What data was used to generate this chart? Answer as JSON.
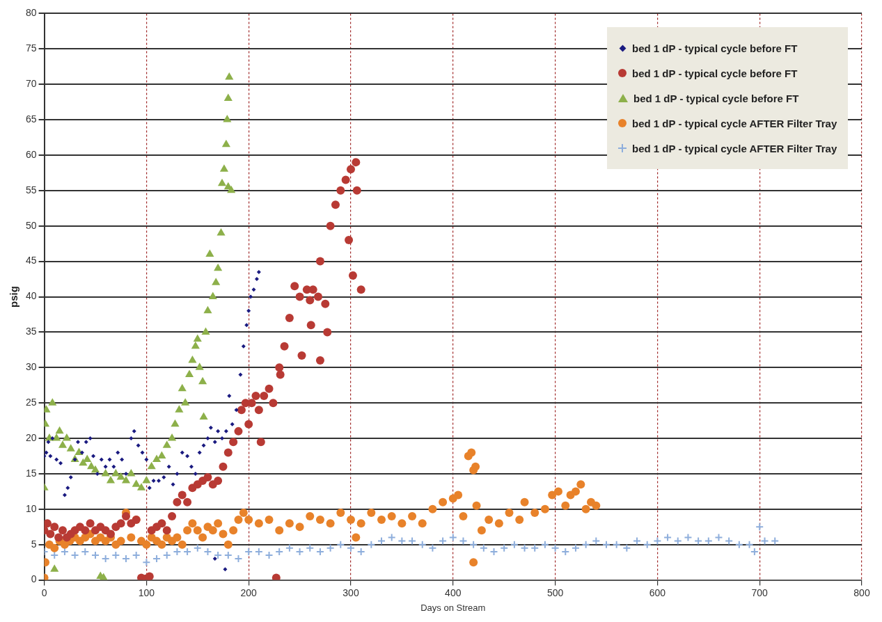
{
  "chart_data": {
    "type": "scatter",
    "xlabel": "Days on Stream",
    "ylabel": "psig",
    "xlim": [
      0,
      800
    ],
    "xticks": [
      0,
      100,
      200,
      300,
      400,
      500,
      600,
      700,
      800
    ],
    "ylim": [
      0,
      80
    ],
    "yticks": [
      0,
      5,
      10,
      15,
      20,
      25,
      30,
      35,
      40,
      45,
      50,
      55,
      60,
      65,
      70,
      75,
      80
    ],
    "grid": true,
    "legend": "top right",
    "series": [
      {
        "name": "bed 1 dP - typical cycle before FT",
        "color": "#1a1a80",
        "marker": "diamond",
        "x": [
          0,
          2,
          4,
          6,
          8,
          12,
          16,
          20,
          23,
          26,
          30,
          33,
          37,
          41,
          45,
          48,
          52,
          56,
          60,
          64,
          68,
          72,
          76,
          80,
          85,
          88,
          92,
          96,
          100,
          103,
          107,
          112,
          117,
          122,
          126,
          130,
          135,
          140,
          144,
          148,
          152,
          156,
          160,
          163,
          167,
          167,
          170,
          174,
          177,
          178,
          181,
          184,
          188,
          192,
          195,
          198,
          200,
          202,
          205,
          208,
          210
        ],
        "values": [
          17.5,
          18,
          19.5,
          17.5,
          20,
          17,
          16.5,
          12,
          13,
          14.5,
          17,
          19.5,
          18,
          19.5,
          20,
          17.5,
          15,
          17,
          16,
          17,
          16,
          18,
          17,
          15,
          20,
          21,
          19,
          18,
          17,
          13,
          14,
          14,
          14.5,
          16,
          13.5,
          15,
          18,
          17.5,
          16,
          15,
          18,
          19,
          20,
          21.5,
          19.5,
          3,
          21,
          20,
          1.5,
          21,
          26,
          22,
          24,
          29,
          33,
          36,
          38,
          40,
          41,
          42.5,
          43.5
        ]
      },
      {
        "name": "bed 1 dP - typical cycle before FT",
        "color": "#b83a34",
        "marker": "circle",
        "x": [
          0,
          3,
          6,
          10,
          14,
          18,
          22,
          26,
          30,
          35,
          40,
          45,
          50,
          55,
          60,
          65,
          70,
          75,
          80,
          85,
          90,
          95,
          100,
          103,
          105,
          110,
          115,
          120,
          125,
          130,
          135,
          140,
          145,
          150,
          155,
          160,
          165,
          170,
          175,
          180,
          185,
          190,
          193,
          197,
          200,
          203,
          207,
          210,
          212,
          215,
          220,
          224,
          227,
          230,
          231,
          235,
          240,
          245,
          250,
          252,
          257,
          260,
          261,
          263,
          268,
          270,
          270,
          275,
          277,
          280,
          285,
          290,
          295,
          298,
          300,
          302,
          305,
          306,
          310
        ],
        "values": [
          7,
          8,
          6.5,
          7.5,
          6,
          7,
          6,
          6.5,
          7,
          7.5,
          7,
          8,
          7,
          7.5,
          7,
          6.5,
          7.5,
          8,
          9,
          8,
          8.5,
          0.3,
          0.2,
          0.5,
          7,
          7.5,
          8,
          7,
          9,
          11,
          12,
          11,
          13,
          13.5,
          14,
          14.5,
          13.5,
          14,
          16,
          18,
          19.5,
          21,
          24,
          25,
          22,
          25,
          26,
          24,
          19.5,
          26,
          27,
          25,
          0.3,
          30,
          29,
          33,
          37,
          41.5,
          40,
          31.7,
          41,
          39.5,
          36,
          41,
          40,
          45,
          31,
          39,
          35,
          50,
          53,
          55,
          56.5,
          48,
          58,
          43,
          59,
          55,
          41
        ]
      },
      {
        "name": "bed 1 dP - typical cycle before FT",
        "color": "#8db04a",
        "marker": "triangle",
        "x": [
          0,
          1,
          2,
          5,
          8,
          10,
          12,
          15,
          18,
          22,
          26,
          30,
          34,
          38,
          42,
          46,
          50,
          55,
          58,
          60,
          65,
          70,
          75,
          80,
          85,
          90,
          95,
          100,
          105,
          110,
          115,
          120,
          125,
          128,
          132,
          135,
          138,
          142,
          145,
          148,
          150,
          152,
          155,
          156,
          158,
          160,
          162,
          165,
          168,
          170,
          173,
          174,
          176,
          178,
          179,
          180,
          180,
          181,
          183
        ],
        "values": [
          13,
          22,
          24,
          20,
          25,
          1.5,
          20,
          21,
          19,
          20,
          18.5,
          17,
          18,
          16.5,
          17,
          16,
          15.5,
          0.5,
          0.3,
          15,
          14,
          15,
          14.5,
          14,
          15,
          13.5,
          13,
          14,
          16,
          17,
          17.5,
          19,
          20,
          22,
          24,
          27,
          25,
          29,
          31,
          33,
          34,
          30,
          28,
          23,
          35,
          38,
          46,
          40,
          42,
          44,
          49,
          56,
          58,
          61.5,
          65,
          68,
          55.5,
          71,
          55
        ]
      },
      {
        "name": "bed 1 dP - typical cycle AFTER Filter Tray",
        "color": "#e8822a",
        "marker": "circle",
        "x": [
          0,
          1,
          5,
          10,
          15,
          20,
          25,
          30,
          35,
          40,
          45,
          50,
          55,
          60,
          65,
          70,
          75,
          80,
          85,
          90,
          95,
          100,
          105,
          110,
          115,
          120,
          125,
          130,
          135,
          140,
          145,
          150,
          155,
          160,
          165,
          170,
          175,
          180,
          185,
          190,
          195,
          200,
          210,
          220,
          230,
          240,
          250,
          260,
          270,
          280,
          290,
          300,
          305,
          310,
          320,
          330,
          340,
          350,
          360,
          370,
          380,
          390,
          400,
          405,
          410,
          415,
          418,
          420,
          422,
          420,
          423,
          428,
          435,
          445,
          455,
          465,
          470,
          480,
          490,
          497,
          503,
          510,
          515,
          520,
          525,
          530,
          535,
          540
        ],
        "values": [
          0.3,
          2.5,
          5,
          4.5,
          5.5,
          5,
          5.5,
          6,
          5.5,
          6,
          6.5,
          5.5,
          6,
          5.5,
          6,
          5,
          5.5,
          9.5,
          6,
          8.5,
          5.5,
          5,
          6,
          5.5,
          5,
          6,
          5.5,
          6,
          5,
          7,
          8,
          7,
          6,
          7.5,
          7,
          8,
          6.5,
          5,
          7,
          8.5,
          9.5,
          8.5,
          8,
          8.5,
          7,
          8,
          7.5,
          9,
          8.5,
          8,
          9.5,
          8.5,
          6,
          8,
          9.5,
          8.5,
          9,
          8,
          9,
          8,
          10,
          11,
          11.5,
          12,
          9,
          17.5,
          18,
          15.5,
          16,
          2.5,
          10.5,
          7,
          8.5,
          8,
          9.5,
          8.5,
          11,
          9.5,
          10,
          12,
          12.5,
          10.5,
          12,
          12.5,
          13.5,
          10,
          11,
          10.5
        ]
      },
      {
        "name": "bed 1 dP - typical cycle AFTER Filter Tray",
        "color": "#8eaedc",
        "marker": "cross",
        "x": [
          0,
          10,
          20,
          30,
          40,
          50,
          60,
          70,
          80,
          90,
          100,
          110,
          120,
          130,
          140,
          150,
          160,
          170,
          180,
          190,
          200,
          210,
          220,
          230,
          240,
          250,
          260,
          270,
          280,
          290,
          300,
          310,
          320,
          330,
          340,
          350,
          360,
          370,
          380,
          390,
          400,
          410,
          420,
          430,
          440,
          450,
          460,
          470,
          480,
          490,
          500,
          510,
          520,
          530,
          540,
          550,
          560,
          570,
          580,
          590,
          600,
          610,
          620,
          630,
          640,
          650,
          660,
          670,
          680,
          690,
          695,
          700,
          705,
          715
        ],
        "values": [
          4,
          3.5,
          4,
          3.5,
          4,
          3.5,
          3,
          3.5,
          3,
          3.5,
          2.5,
          3,
          3.5,
          4,
          4,
          4.5,
          4,
          3.5,
          3.5,
          3,
          4,
          4,
          3.5,
          4,
          4.5,
          4,
          4.5,
          4,
          4.5,
          5,
          4.5,
          4,
          5,
          5.5,
          6,
          5.5,
          5.5,
          5,
          4.5,
          5.5,
          6,
          5.5,
          5,
          4.5,
          4,
          4.5,
          5,
          4.5,
          4.5,
          5,
          4.5,
          4,
          4.5,
          5,
          5.5,
          5,
          5,
          4.5,
          5.5,
          5,
          5.5,
          6,
          5.5,
          6,
          5.5,
          5.5,
          6,
          5.5,
          5,
          5,
          4,
          7.5,
          5.5,
          5.5
        ]
      }
    ]
  }
}
